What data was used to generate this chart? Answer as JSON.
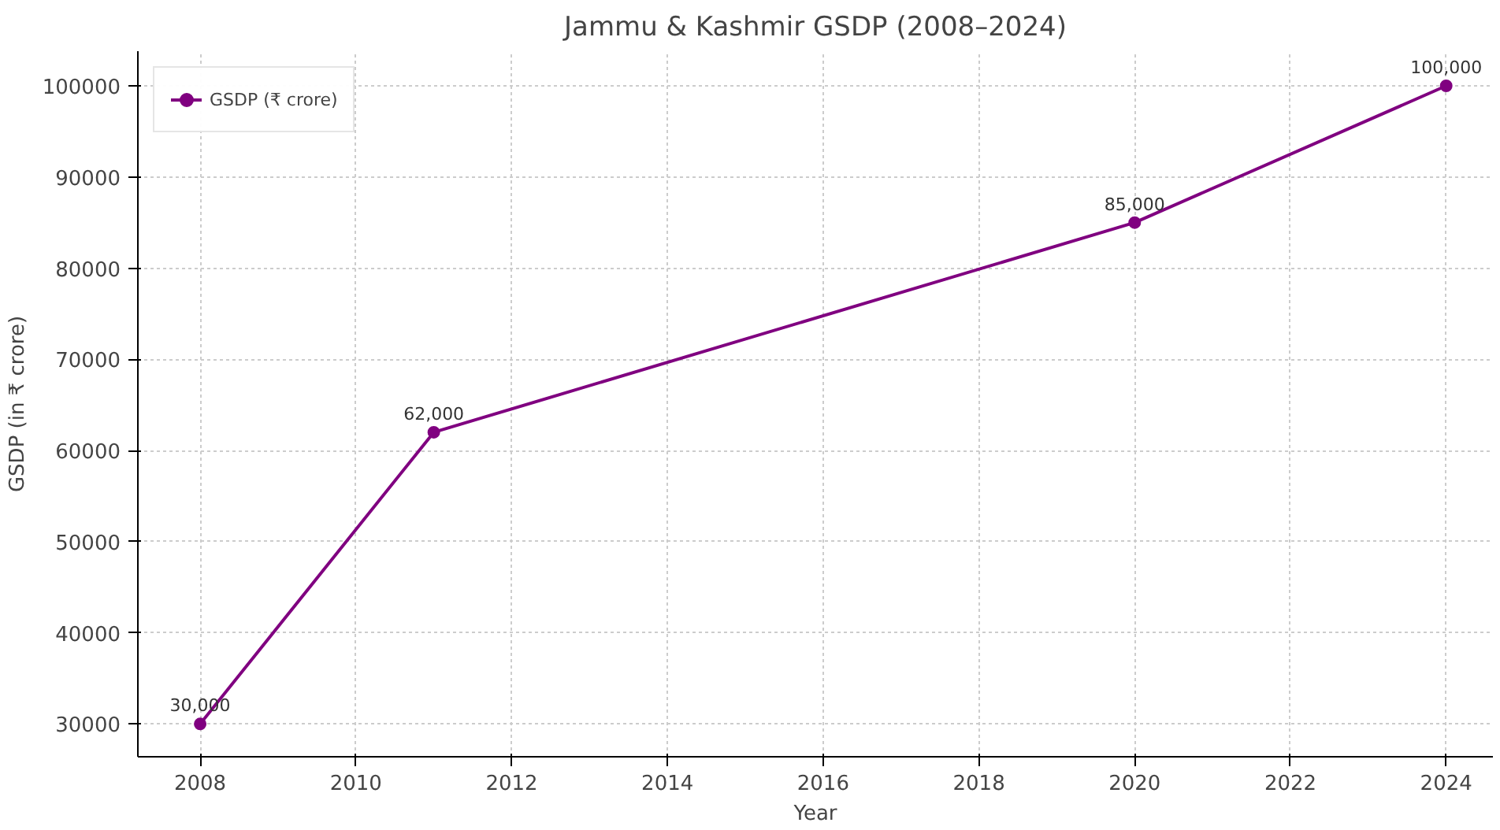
{
  "chart_data": {
    "type": "line",
    "title": "Jammu & Kashmir GSDP (2008–2024)",
    "xlabel": "Year",
    "ylabel": "GSDP (in ₹ crore)",
    "x": [
      2008,
      2011,
      2020,
      2024
    ],
    "series": [
      {
        "name": "GSDP (₹ crore)",
        "color": "#800080",
        "values": [
          30000,
          62000,
          85000,
          100000
        ],
        "value_labels": [
          "30,000",
          "62,000",
          "85,000",
          "100,000"
        ]
      }
    ],
    "xlim": [
      2007.2,
      2024.6
    ],
    "xticks": [
      2008,
      2010,
      2012,
      2014,
      2016,
      2018,
      2020,
      2022,
      2024
    ],
    "ylim": [
      26400,
      103800
    ],
    "yticks": [
      30000,
      40000,
      50000,
      60000,
      70000,
      80000,
      90000,
      100000
    ],
    "grid": true,
    "legend": "top left",
    "marker": "circle",
    "line_style": "solid"
  }
}
